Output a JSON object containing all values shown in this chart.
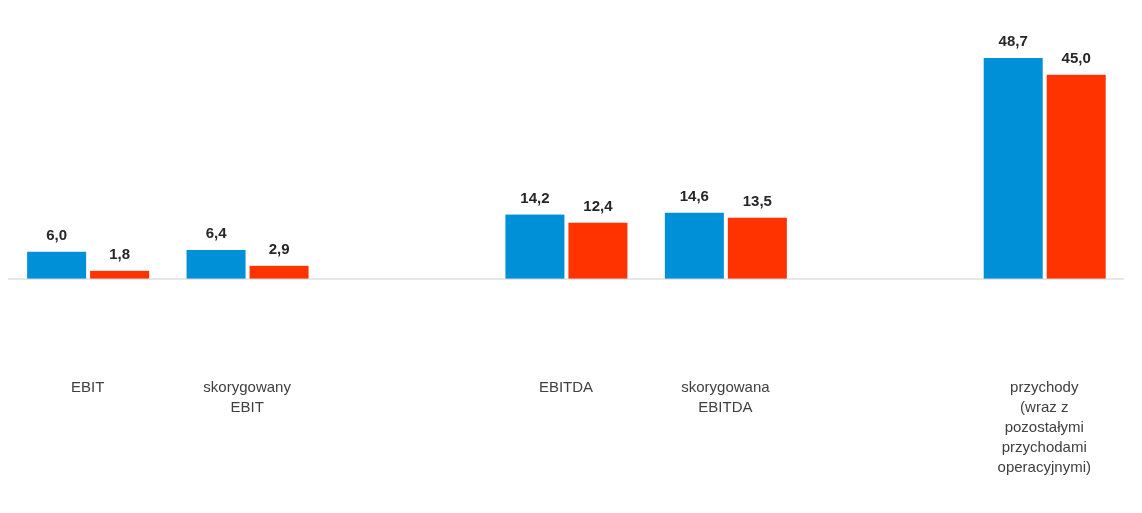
{
  "chart_data": {
    "type": "bar",
    "categories": [
      "EBIT",
      "skorygowany EBIT",
      null,
      "EBITDA",
      "skorygowana EBITDA",
      null,
      "przychody (wraz z pozostałymi przychodami operacyjnymi)"
    ],
    "series": [
      {
        "color": "#0090d8",
        "values": [
          6.0,
          6.4,
          null,
          14.2,
          14.6,
          null,
          48.7
        ],
        "value_labels": [
          "6,0",
          "6,4",
          null,
          "14,2",
          "14,6",
          null,
          "48,7"
        ]
      },
      {
        "color": "#ff3300",
        "values": [
          1.8,
          2.9,
          null,
          12.4,
          13.5,
          null,
          45.0
        ],
        "value_labels": [
          "1,8",
          "2,9",
          null,
          "12,4",
          "13,5",
          null,
          "45,0"
        ]
      }
    ],
    "tick_labels": "x"
  }
}
